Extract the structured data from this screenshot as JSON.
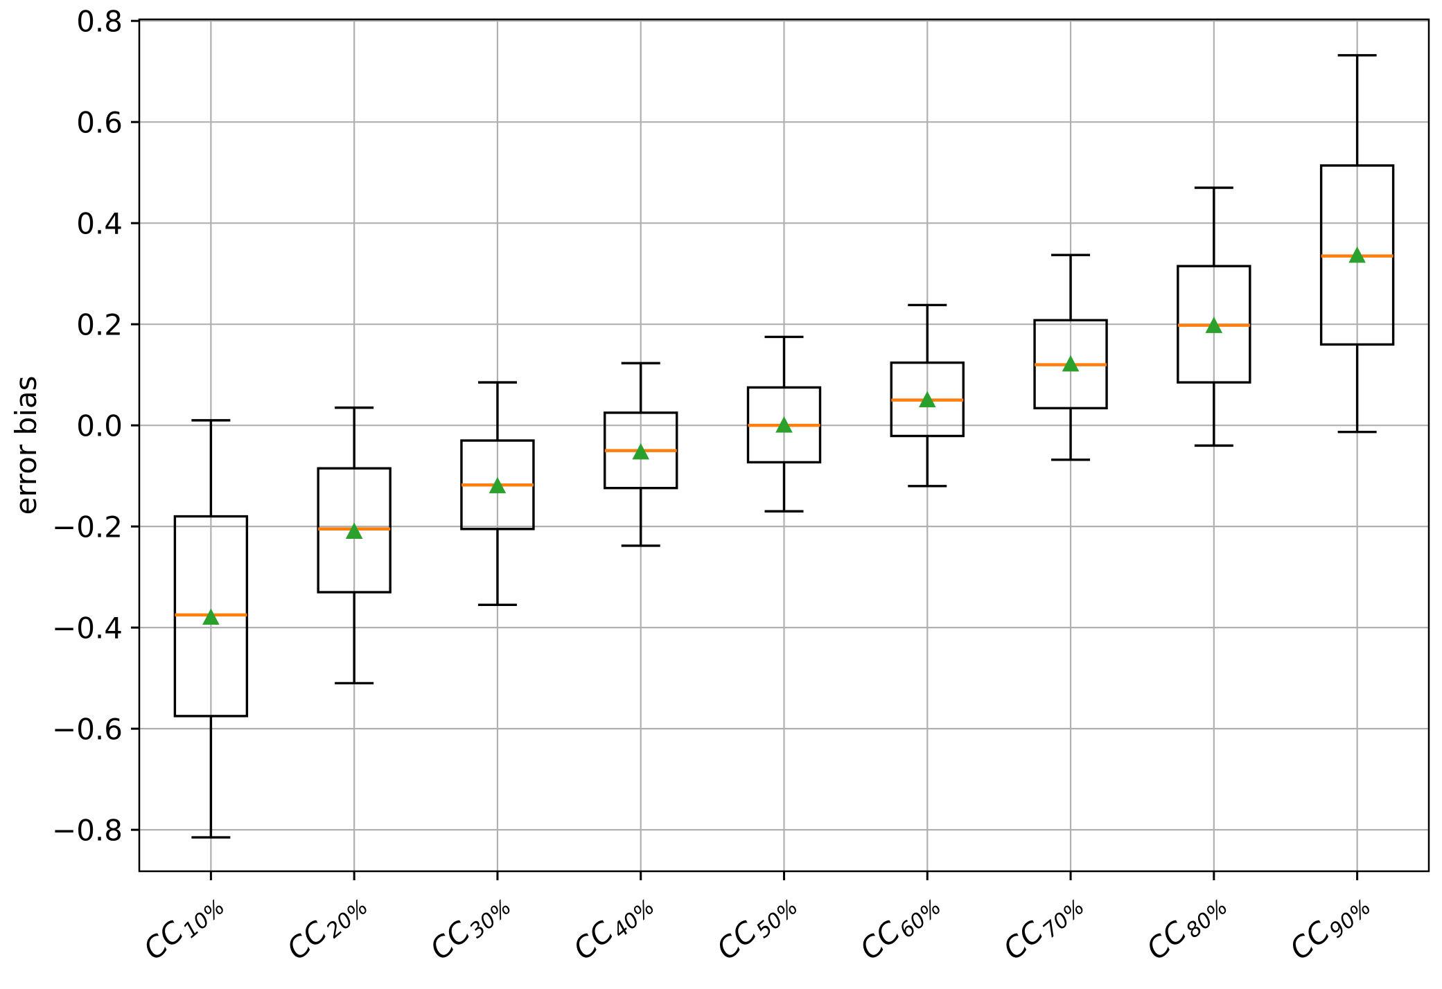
{
  "chart_data": {
    "type": "boxplot",
    "title": "",
    "xlabel": "",
    "ylabel": "error bias",
    "grid": true,
    "legend_position": "none",
    "ylim": [
      -0.882,
      0.803
    ],
    "yticks": [
      -0.8,
      -0.6,
      -0.4,
      -0.2,
      0.0,
      0.2,
      0.4,
      0.6,
      0.8
    ],
    "ytick_labels": [
      "−0.8",
      "−0.6",
      "−0.4",
      "−0.2",
      "0.0",
      "0.2",
      "0.4",
      "0.6",
      "0.8"
    ],
    "categories": [
      "CC10%",
      "CC20%",
      "CC30%",
      "CC40%",
      "CC50%",
      "CC60%",
      "CC70%",
      "CC80%",
      "CC90%"
    ],
    "colors": {
      "median": "#ff7f0e",
      "mean": "#2ca02c",
      "box_line": "#000000",
      "grid": "#b0b0b0",
      "background": "#ffffff"
    },
    "boxes": [
      {
        "id": "cc10",
        "label_prefix": "CC",
        "label_sub": "10%",
        "whislo": -0.815,
        "q1": -0.575,
        "med": -0.375,
        "mean": -0.38,
        "q3": -0.18,
        "whishi": 0.01
      },
      {
        "id": "cc20",
        "label_prefix": "CC",
        "label_sub": "20%",
        "whislo": -0.51,
        "q1": -0.33,
        "med": -0.205,
        "mean": -0.21,
        "q3": -0.085,
        "whishi": 0.035
      },
      {
        "id": "cc30",
        "label_prefix": "CC",
        "label_sub": "30%",
        "whislo": -0.355,
        "q1": -0.205,
        "med": -0.118,
        "mean": -0.12,
        "q3": -0.03,
        "whishi": 0.085
      },
      {
        "id": "cc40",
        "label_prefix": "CC",
        "label_sub": "40%",
        "whislo": -0.238,
        "q1": -0.124,
        "med": -0.05,
        "mean": -0.053,
        "q3": 0.025,
        "whishi": 0.123
      },
      {
        "id": "cc50",
        "label_prefix": "CC",
        "label_sub": "50%",
        "whislo": -0.17,
        "q1": -0.073,
        "med": 0.0,
        "mean": 0.0,
        "q3": 0.075,
        "whishi": 0.175
      },
      {
        "id": "cc60",
        "label_prefix": "CC",
        "label_sub": "60%",
        "whislo": -0.12,
        "q1": -0.021,
        "med": 0.05,
        "mean": 0.05,
        "q3": 0.124,
        "whishi": 0.238
      },
      {
        "id": "cc70",
        "label_prefix": "CC",
        "label_sub": "70%",
        "whislo": -0.068,
        "q1": 0.034,
        "med": 0.12,
        "mean": 0.121,
        "q3": 0.208,
        "whishi": 0.337
      },
      {
        "id": "cc80",
        "label_prefix": "CC",
        "label_sub": "80%",
        "whislo": -0.04,
        "q1": 0.085,
        "med": 0.198,
        "mean": 0.197,
        "q3": 0.315,
        "whishi": 0.47
      },
      {
        "id": "cc90",
        "label_prefix": "CC",
        "label_sub": "90%",
        "whislo": -0.013,
        "q1": 0.16,
        "med": 0.335,
        "mean": 0.336,
        "q3": 0.514,
        "whishi": 0.732
      }
    ]
  }
}
